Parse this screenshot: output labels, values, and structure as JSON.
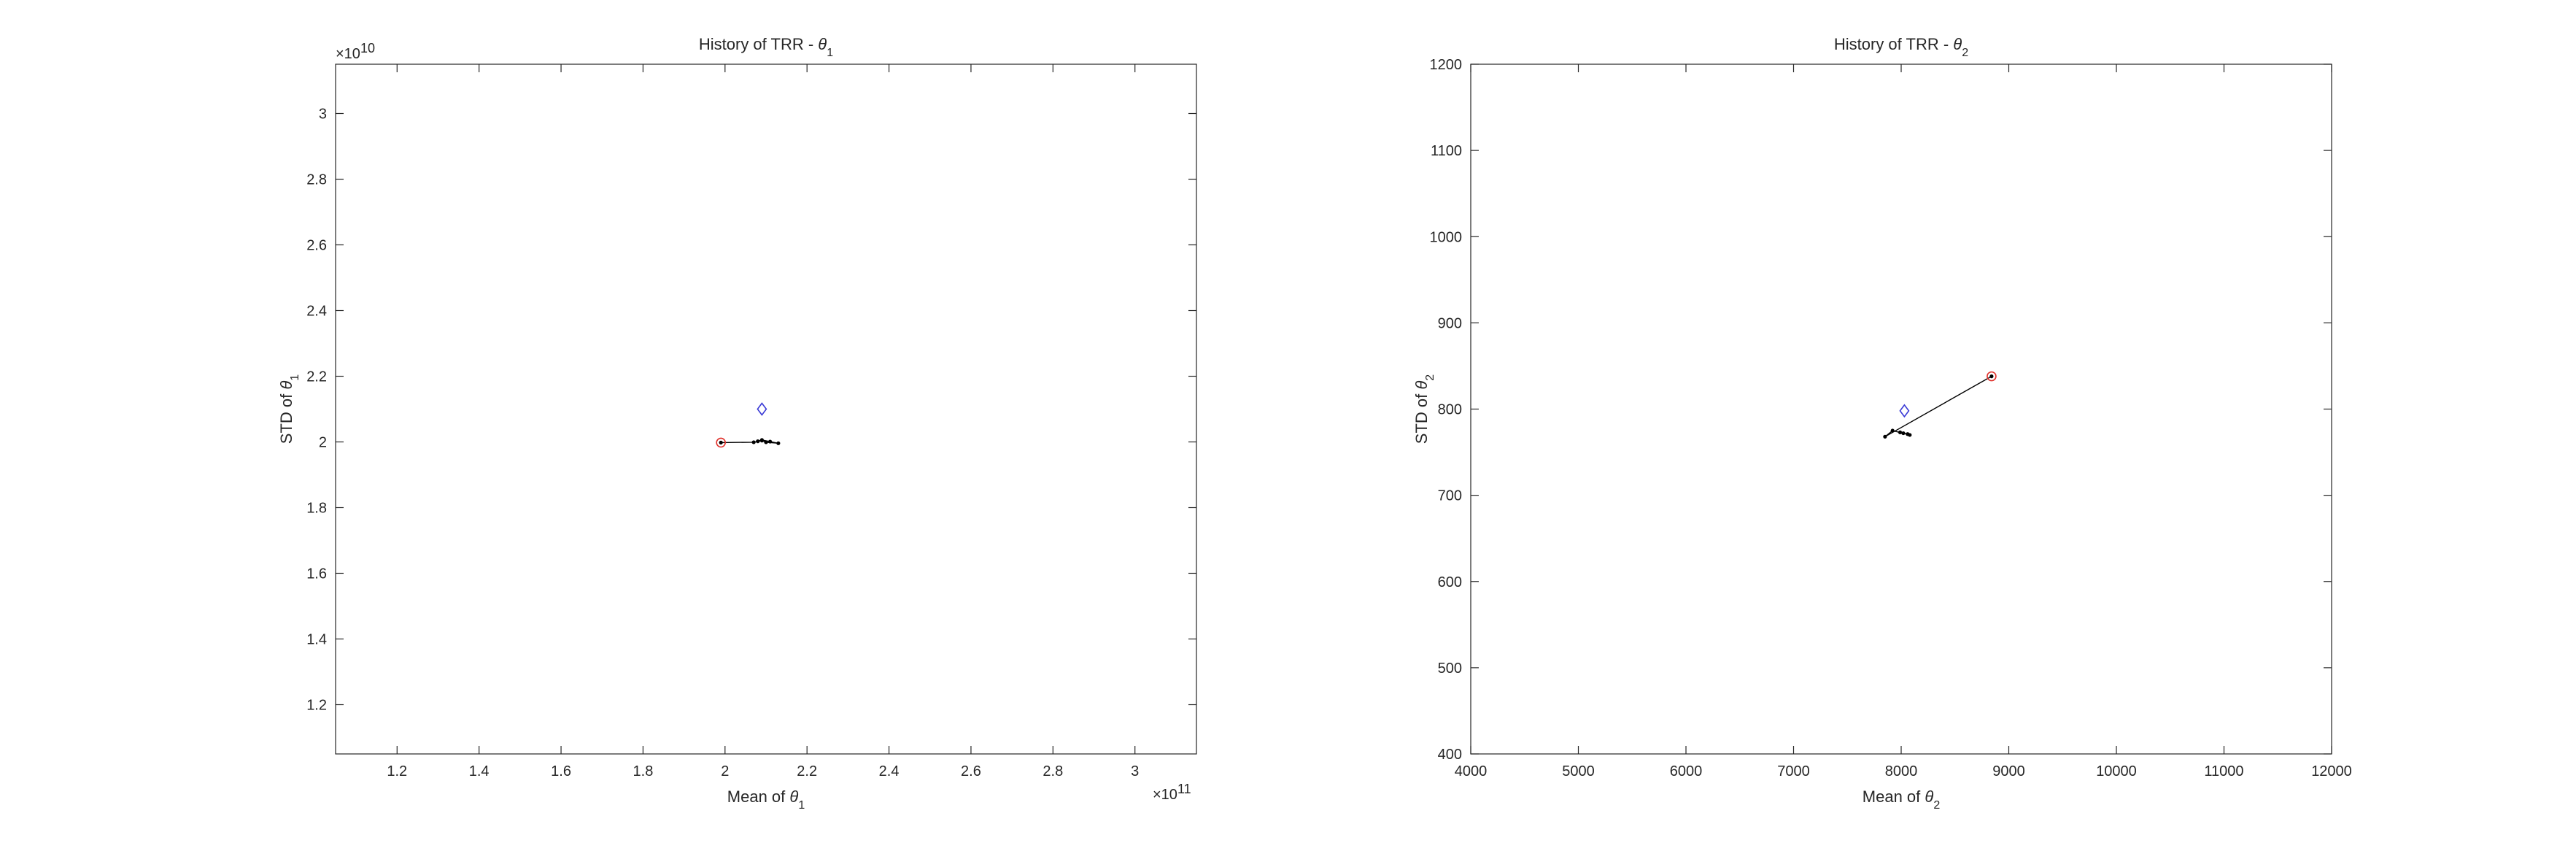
{
  "figure": {
    "background": "#ffffff"
  },
  "chart_data": [
    {
      "type": "line",
      "title": {
        "prefix": "History of TRR - ",
        "symbol": "θ",
        "subscript": "1"
      },
      "xlabel": {
        "prefix": "Mean of ",
        "symbol": "θ",
        "subscript": "1"
      },
      "ylabel": {
        "prefix": "STD of ",
        "symbol": "θ",
        "subscript": "1"
      },
      "x_exponent": "11",
      "y_exponent": "10",
      "xlim": [
        1.05,
        3.15
      ],
      "ylim": [
        1.05,
        3.15
      ],
      "x_ticks": [
        1.2,
        1.4,
        1.6,
        1.8,
        2.0,
        2.2,
        2.4,
        2.6,
        2.8,
        3.0
      ],
      "y_ticks": [
        1.2,
        1.4,
        1.6,
        1.8,
        2.0,
        2.2,
        2.4,
        2.6,
        2.8,
        3.0
      ],
      "x_tick_labels": [
        "1.2",
        "1.4",
        "1.6",
        "1.8",
        "2",
        "2.2",
        "2.4",
        "2.6",
        "2.8",
        "3"
      ],
      "y_tick_labels": [
        "1.2",
        "1.4",
        "1.6",
        "1.8",
        "2",
        "2.2",
        "2.4",
        "2.6",
        "2.8",
        "3"
      ],
      "grid": false,
      "series": [
        {
          "role": "history",
          "color": "#000000",
          "x": [
            1.99,
            2.07,
            2.09,
            2.1,
            2.13,
            2.11,
            2.09,
            2.08
          ],
          "y": [
            1.998,
            1.999,
            2.004,
            1.999,
            1.996,
            2.001,
            2.006,
            2.002
          ]
        }
      ],
      "markers": [
        {
          "role": "start",
          "shape": "circle",
          "color": "#e0302a",
          "x": 1.99,
          "y": 1.998
        },
        {
          "role": "reference",
          "shape": "diamond",
          "color": "#3a3ad6",
          "x": 2.09,
          "y": 2.1
        }
      ]
    },
    {
      "type": "line",
      "title": {
        "prefix": "History of TRR - ",
        "symbol": "θ",
        "subscript": "2"
      },
      "xlabel": {
        "prefix": "Mean of ",
        "symbol": "θ",
        "subscript": "2"
      },
      "ylabel": {
        "prefix": "STD of ",
        "symbol": "θ",
        "subscript": "2"
      },
      "x_exponent": "",
      "y_exponent": "",
      "xlim": [
        4000,
        12000
      ],
      "ylim": [
        400,
        1200
      ],
      "x_ticks": [
        4000,
        5000,
        6000,
        7000,
        8000,
        9000,
        10000,
        11000,
        12000
      ],
      "y_ticks": [
        400,
        500,
        600,
        700,
        800,
        900,
        1000,
        1100,
        1200
      ],
      "x_tick_labels": [
        "4000",
        "5000",
        "6000",
        "7000",
        "8000",
        "9000",
        "10000",
        "11000",
        "12000"
      ],
      "y_tick_labels": [
        "400",
        "500",
        "600",
        "700",
        "800",
        "900",
        "1000",
        "1100",
        "1200"
      ],
      "grid": false,
      "series": [
        {
          "role": "history",
          "color": "#000000",
          "x": [
            8840,
            7850,
            7920,
            8080,
            7990,
            8060,
            8020
          ],
          "y": [
            838,
            768,
            775,
            770,
            773,
            771,
            772
          ]
        }
      ],
      "markers": [
        {
          "role": "start",
          "shape": "circle",
          "color": "#e0302a",
          "x": 8840,
          "y": 838
        },
        {
          "role": "reference",
          "shape": "diamond",
          "color": "#3a3ad6",
          "x": 8030,
          "y": 798
        }
      ]
    }
  ]
}
